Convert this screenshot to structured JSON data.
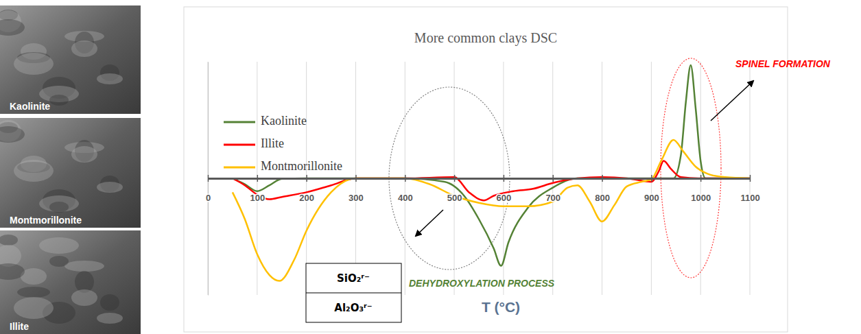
{
  "chart_data": {
    "type": "line",
    "title": "More common clays DSC",
    "x_label": "T (°C)",
    "xlim": [
      0,
      1100
    ],
    "xticks": [
      0,
      100,
      200,
      300,
      400,
      500,
      600,
      700,
      800,
      900,
      1000,
      1100
    ],
    "ylim": [
      -10,
      10
    ],
    "tick_labels": "x",
    "grid": true,
    "legend": "upper left",
    "series": [
      {
        "name": "Kaolinite",
        "color": "#548235",
        "x": [
          50,
          75,
          100,
          125,
          150,
          200,
          300,
          400,
          480,
          520,
          550,
          580,
          595,
          610,
          650,
          700,
          750,
          800,
          900,
          945,
          960,
          970,
          980,
          990,
          1000,
          1010,
          1100
        ],
        "values": [
          0,
          -0.5,
          -1.1,
          -0.6,
          -0.05,
          0,
          0,
          0,
          -0.3,
          -1.5,
          -3.5,
          -6,
          -7.5,
          -5.5,
          -2.5,
          -0.8,
          0,
          0,
          0,
          0,
          2,
          6.5,
          9.7,
          6,
          1.5,
          0,
          0
        ]
      },
      {
        "name": "Illite",
        "color": "#ff0000",
        "x": [
          50,
          75,
          100,
          125,
          150,
          200,
          250,
          300,
          400,
          500,
          530,
          560,
          580,
          620,
          660,
          700,
          750,
          800,
          850,
          880,
          900,
          915,
          925,
          940,
          960,
          1000,
          1100
        ],
        "values": [
          0,
          -0.6,
          -1.4,
          -1.8,
          -1.6,
          -1.2,
          -0.6,
          0,
          0,
          0.1,
          -1.2,
          -1.9,
          -1.5,
          -1.1,
          -0.9,
          -0.4,
          0,
          0.1,
          0,
          -0.2,
          -0.3,
          0.6,
          1.5,
          0.8,
          0.1,
          0,
          0
        ]
      },
      {
        "name": "Montmorillonite",
        "color": "#ffc000",
        "x": [
          50,
          75,
          100,
          125,
          145,
          175,
          200,
          250,
          300,
          400,
          450,
          500,
          550,
          600,
          650,
          700,
          730,
          750,
          775,
          800,
          825,
          850,
          880,
          900,
          920,
          945,
          965,
          990,
          1020,
          1050,
          1100
        ],
        "values": [
          -1.2,
          -3.5,
          -6.5,
          -8.3,
          -8.8,
          -7,
          -4.5,
          -1.2,
          0,
          0,
          -0.5,
          -1.5,
          -2.1,
          -2.4,
          -2.4,
          -2,
          -0.8,
          -0.6,
          -2,
          -3.7,
          -2.3,
          -0.7,
          -0.3,
          -0.1,
          1.5,
          3.3,
          2.3,
          1,
          0.3,
          0.1,
          0
        ]
      }
    ],
    "annotations": [
      "SPINEL FORMATION",
      "DEHYDROXYLATION PROCESS",
      "SiO₂ʳ⁻",
      "Al₂O₃ʳ⁻"
    ]
  },
  "images": [
    {
      "label": "Kaolinite"
    },
    {
      "label": "Montmorillonite"
    },
    {
      "label": "Illite"
    }
  ]
}
